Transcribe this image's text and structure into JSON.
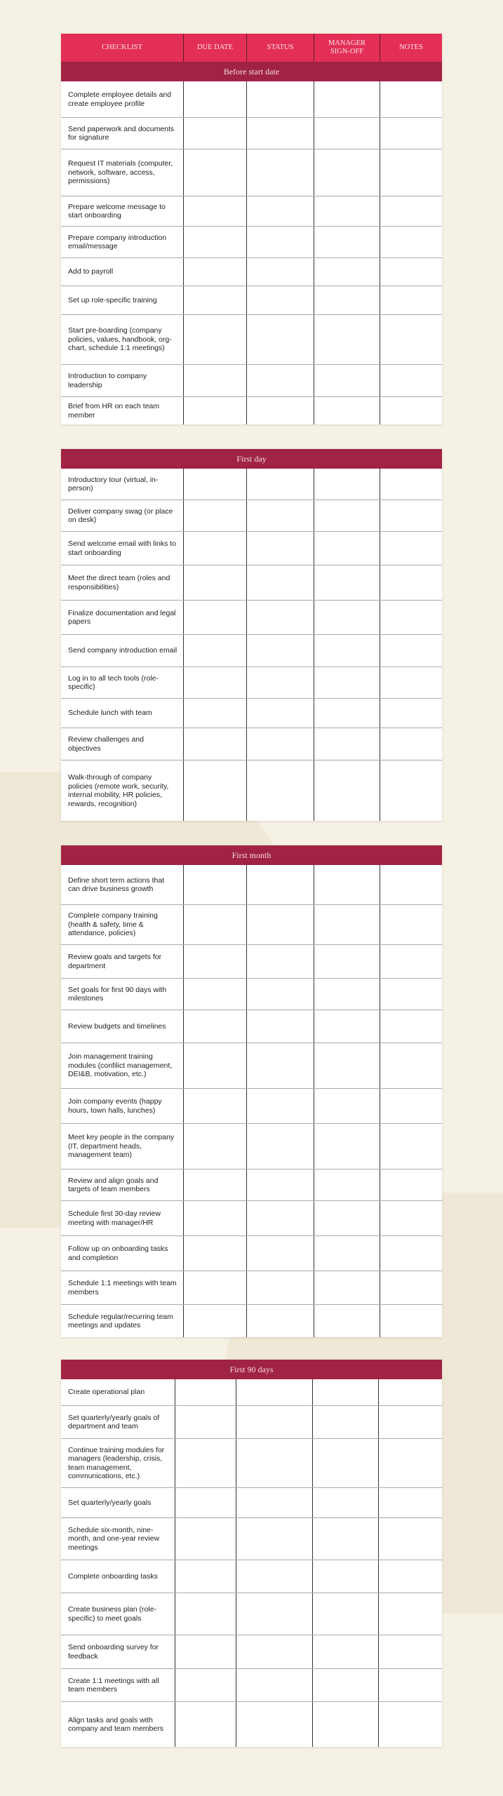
{
  "columns": [
    "CHECKLIST",
    "DUE DATE",
    "STATUS",
    "MANAGER SIGN-OFF",
    "NOTES"
  ],
  "colors": {
    "header": "#e32f56",
    "section": "#a02344",
    "background": "#f5f1e4"
  },
  "sections": [
    {
      "title": "Before start date",
      "rows": [
        "Complete employee details and create employee profile",
        "Send paperwork and documents for signature",
        "Request IT materials (computer, network, software, access, permissions)",
        "Prepare welcome message to start onboarding",
        "Prepare company introduction email/message",
        "Add to payroll",
        "Set up role-specific training",
        "Start pre-boarding (company policies, values, handbook, org-chart, schedule 1:1 meetings)",
        "Introduction to company leadership",
        "Brief from HR on each team member"
      ]
    },
    {
      "title": "First day",
      "rows": [
        "Introductory tour (virtual, in-person)",
        "Deliver company swag (or place on desk)",
        "Send welcome email with links to start onboarding",
        "Meet the direct team (roles and responsibilities)",
        "Finalize documentation and legal papers",
        "Send company introduction email",
        "Log in to all tech tools (role-specific)",
        "Schedule lunch with team",
        "Review challenges and objectives",
        "Walk-through of company policies (remote work, security, internal mobility, HR policies, rewards, recognition)"
      ]
    },
    {
      "title": "First month",
      "rows": [
        "Define short term actions that can drive business growth",
        "Complete company training (health & safety, time & attendance, policies)",
        "Review goals and targets for department",
        "Set goals for first 90 days with milestones",
        "Review budgets and timelines",
        "Join management training modules (confilict management, DEI&B, motivation, etc.)",
        "Join company events (happy hours, town halls, lunches)",
        "Meet key people in the company (IT, department heads, management team)",
        "Review and align goals and targets of team members",
        "Schedule first 30-day review meeting with manager/HR",
        "Follow up on onboarding tasks and completion",
        "Schedule 1:1 meetings with team members",
        "Schedule regular/recurring team meetings and updates"
      ]
    },
    {
      "title": "First 90 days",
      "rows": [
        "Create operational plan",
        "Set quarterly/yearly goals of department and team",
        "Continue training modules for managers (leadership, crisis, team management, communications, etc.)",
        "Set quarterly/yearly goals",
        "Schedule six-month, nine-month, and one-year review meetings",
        "Complete onboarding tasks",
        "Create business plan (role-specific) to meet goals",
        "Send onboarding survey for feedback",
        "Create 1:1 meetings with all team members",
        "Align tasks and goals with company and team members"
      ]
    }
  ]
}
